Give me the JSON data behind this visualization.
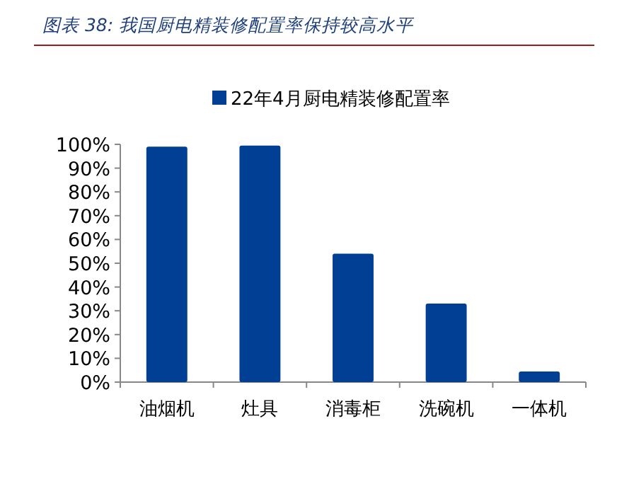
{
  "chart_data": {
    "type": "bar",
    "title": "图表 38: 我国厨电精装修配置率保持较高水平",
    "categories": [
      "油烟机",
      "灶具",
      "消毒柜",
      "洗碗机",
      "一体机"
    ],
    "series": [
      {
        "name": "22年4月厨电精装修配置率",
        "color": "#003f94",
        "values": [
          99,
          99.5,
          54,
          33,
          4.5
        ]
      }
    ],
    "ylim": [
      0,
      100
    ],
    "yticks": [
      {
        "value": 0,
        "label": "0%"
      },
      {
        "value": 10,
        "label": "10%"
      },
      {
        "value": 20,
        "label": "20%"
      },
      {
        "value": 30,
        "label": "30%"
      },
      {
        "value": 40,
        "label": "40%"
      },
      {
        "value": 50,
        "label": "50%"
      },
      {
        "value": 60,
        "label": "60%"
      },
      {
        "value": 70,
        "label": "70%"
      },
      {
        "value": 80,
        "label": "80%"
      },
      {
        "value": 90,
        "label": "90%"
      },
      {
        "value": 100,
        "label": "100%"
      }
    ],
    "grid": false,
    "legend": "top"
  }
}
